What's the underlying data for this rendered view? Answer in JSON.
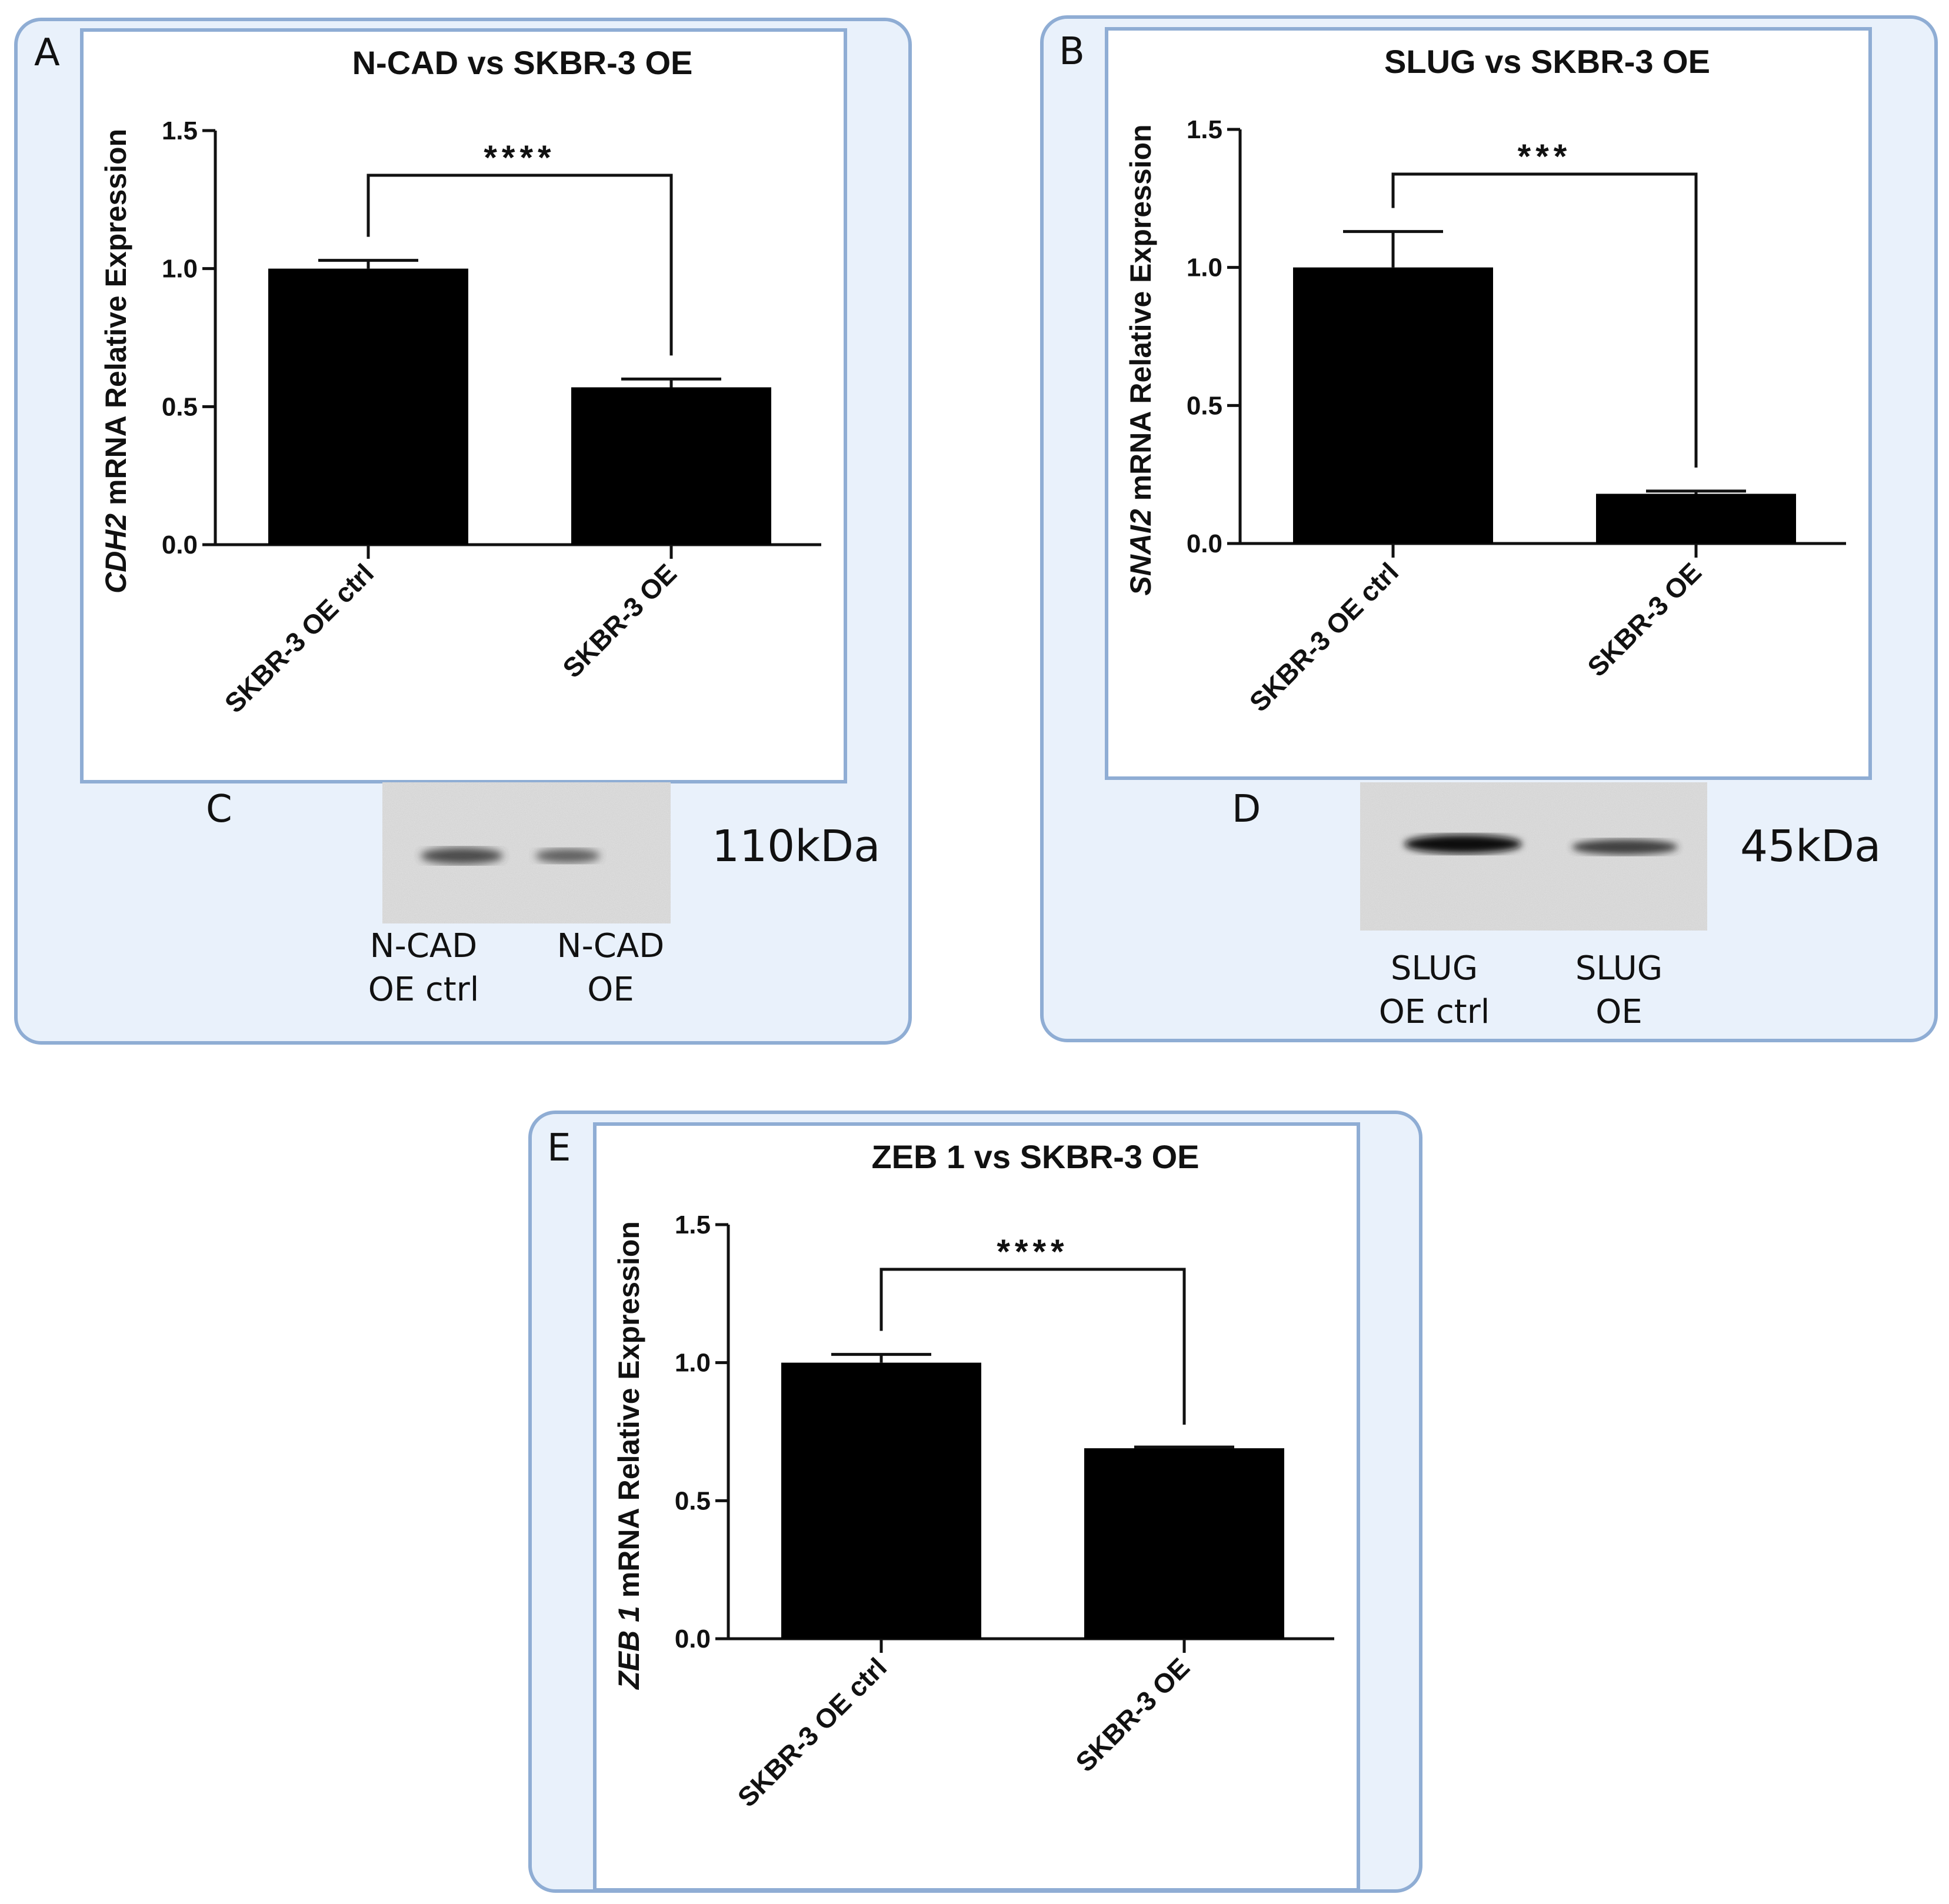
{
  "chart_data": [
    {
      "panel": "A",
      "type": "bar",
      "title": "N-CAD vs SKBR-3 OE",
      "ylabel_gene": "CDH2",
      "ylabel_rest": " mRNA Relative Expression",
      "categories": [
        "SKBR-3 OE ctrl",
        "SKBR-3 OE"
      ],
      "values": [
        1.0,
        0.57
      ],
      "error": [
        0.03,
        0.03
      ],
      "ylim": [
        0,
        1.5
      ],
      "yticks": [
        "0.0",
        "0.5",
        "1.0",
        "1.5"
      ],
      "significance": "****",
      "bar_color": "#000000"
    },
    {
      "panel": "B",
      "type": "bar",
      "title": "SLUG vs SKBR-3 OE",
      "ylabel_gene": "SNAI2",
      "ylabel_rest": " mRNA Relative Expression",
      "categories": [
        "SKBR-3 OE ctrl",
        "SKBR-3 OE"
      ],
      "values": [
        1.0,
        0.18
      ],
      "error": [
        0.13,
        0.01
      ],
      "ylim": [
        0,
        1.5
      ],
      "yticks": [
        "0.0",
        "0.5",
        "1.0",
        "1.5"
      ],
      "significance": "***",
      "bar_color": "#000000"
    },
    {
      "panel": "E",
      "type": "bar",
      "title": "ZEB 1 vs SKBR-3 OE",
      "ylabel_gene": "ZEB 1",
      "ylabel_rest": " mRNA Relative Expression",
      "categories": [
        "SKBR-3 OE ctrl",
        "SKBR-3 OE"
      ],
      "values": [
        1.0,
        0.69
      ],
      "error": [
        0.03,
        0.0
      ],
      "ylim": [
        0,
        1.5
      ],
      "yticks": [
        "0.0",
        "0.5",
        "1.0",
        "1.5"
      ],
      "significance": "****",
      "bar_color": "#000000"
    }
  ],
  "panels": {
    "a": {
      "letter": "A"
    },
    "b": {
      "letter": "B"
    },
    "c": {
      "letter": "C",
      "lane_labels": [
        "N-CAD\nOE ctrl",
        "N-CAD\nOE"
      ],
      "size": "110kDa"
    },
    "d": {
      "letter": "D",
      "lane_labels": [
        "SLUG\nOE ctrl",
        "SLUG\nOE"
      ],
      "size": "45kDa"
    },
    "e": {
      "letter": "E"
    }
  },
  "colors": {
    "panel_bg": "#e9f1fb",
    "panel_border": "#8fadd4"
  }
}
